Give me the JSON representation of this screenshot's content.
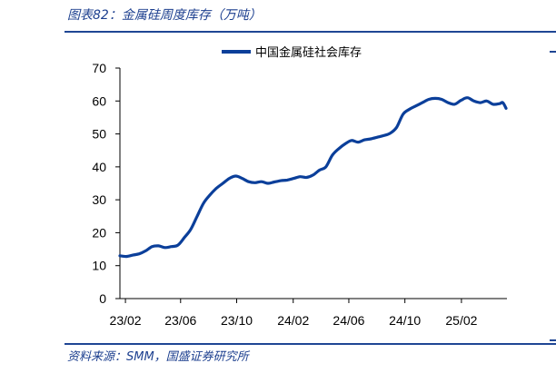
{
  "figure": {
    "title": "图表82：金属硅周度库存（万吨）",
    "source": "资料来源：SMM，国盛证券研究所"
  },
  "chart_data": {
    "type": "line",
    "title": "",
    "xlabel": "",
    "ylabel": "",
    "ylim": [
      0,
      70
    ],
    "y_ticks": [
      "0",
      "10",
      "20",
      "30",
      "40",
      "50",
      "60",
      "70"
    ],
    "x_ticks": [
      "23/02",
      "23/06",
      "23/10",
      "24/02",
      "24/06",
      "24/10",
      "25/02"
    ],
    "legend": {
      "position": "top-center",
      "entries": [
        "中国金属硅社会库存"
      ]
    },
    "grid": false,
    "colors": {
      "series": "#0b3f9a"
    },
    "series": [
      {
        "name": "中国金属硅社会库存",
        "x": [
          "2023-01-20",
          "2023-02-03",
          "2023-02-17",
          "2023-03-03",
          "2023-03-17",
          "2023-03-31",
          "2023-04-14",
          "2023-04-28",
          "2023-05-12",
          "2023-05-26",
          "2023-06-09",
          "2023-06-23",
          "2023-07-07",
          "2023-07-21",
          "2023-08-04",
          "2023-08-18",
          "2023-09-01",
          "2023-09-15",
          "2023-09-29",
          "2023-10-13",
          "2023-10-27",
          "2023-11-10",
          "2023-11-24",
          "2023-12-08",
          "2023-12-22",
          "2024-01-05",
          "2024-01-19",
          "2024-02-02",
          "2024-02-16",
          "2024-03-01",
          "2024-03-15",
          "2024-03-29",
          "2024-04-12",
          "2024-04-26",
          "2024-05-10",
          "2024-05-24",
          "2024-06-07",
          "2024-06-21",
          "2024-07-05",
          "2024-07-19",
          "2024-08-02",
          "2024-08-16",
          "2024-08-30",
          "2024-09-13",
          "2024-09-27",
          "2024-10-11",
          "2024-10-25",
          "2024-11-08",
          "2024-11-22",
          "2024-12-06",
          "2024-12-20",
          "2025-01-03",
          "2025-01-17",
          "2025-01-31",
          "2025-02-14",
          "2025-02-28",
          "2025-03-14",
          "2025-03-28",
          "2025-04-11",
          "2025-04-25",
          "2025-05-02",
          "2025-05-09"
        ],
        "values": [
          13.0,
          12.8,
          13.2,
          13.6,
          14.5,
          15.8,
          16.0,
          15.5,
          15.8,
          16.2,
          18.5,
          21.0,
          25.0,
          29.0,
          31.5,
          33.5,
          35.0,
          36.5,
          37.2,
          36.5,
          35.5,
          35.2,
          35.5,
          35.0,
          35.4,
          35.8,
          36.0,
          36.5,
          37.0,
          36.8,
          37.5,
          39.0,
          40.0,
          43.5,
          45.5,
          47.0,
          48.0,
          47.5,
          48.2,
          48.5,
          49.0,
          49.5,
          50.2,
          52.0,
          56.0,
          57.5,
          58.5,
          59.5,
          60.5,
          60.8,
          60.5,
          59.5,
          59.0,
          60.2,
          61.0,
          60.0,
          59.5,
          60.0,
          59.0,
          59.2,
          59.5,
          57.8
        ]
      }
    ]
  }
}
